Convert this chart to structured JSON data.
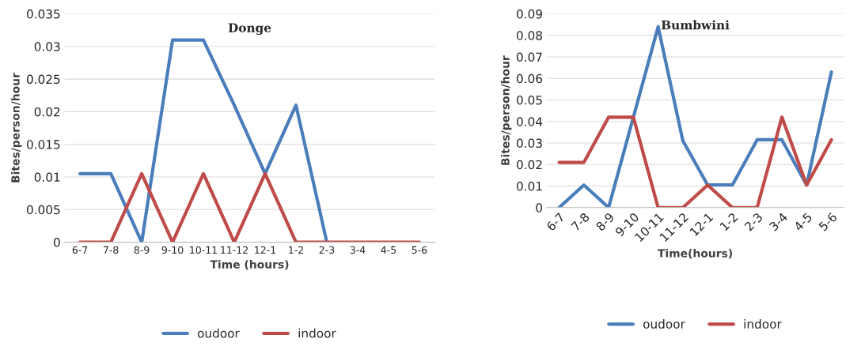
{
  "chart_data": [
    {
      "type": "line",
      "title": "Donge",
      "xlabel": "Time (hours)",
      "ylabel": "Bites/person/hour",
      "categories": [
        "6-7",
        "7-8",
        "8-9",
        "9-10",
        "10-11",
        "11-12",
        "12-1",
        "1-2",
        "2-3",
        "3-4",
        "4-5",
        "5-6"
      ],
      "series": [
        {
          "name": "oudoor",
          "color": "#4a7ebb",
          "values": [
            0.0105,
            0.0105,
            0,
            0.031,
            0.031,
            0.021,
            0.0105,
            0.021,
            0,
            null,
            null,
            null
          ]
        },
        {
          "name": "indoor",
          "color": "#be4b48",
          "values": [
            0,
            0,
            0.0105,
            0,
            0.0105,
            0,
            0.0105,
            0,
            0,
            0,
            0,
            0
          ]
        }
      ],
      "ylim": [
        0,
        0.035
      ],
      "yticks": [
        0,
        0.005,
        0.01,
        0.015,
        0.02,
        0.025,
        0.03,
        0.035
      ],
      "grid": "y",
      "legend": "bottom"
    },
    {
      "type": "line",
      "title": "Bumbwini",
      "xlabel": "Time(hours)",
      "ylabel": "Bites/person/hour",
      "categories": [
        "6-7",
        "7-8",
        "8-9",
        "9-10",
        "10-11",
        "11-12",
        "12-1",
        "1-2",
        "2-3",
        "3-4",
        "4-5",
        "5-6"
      ],
      "series": [
        {
          "name": "oudoor",
          "color": "#4a7ebb",
          "values": [
            0,
            0.0105,
            0,
            0.042,
            0.084,
            0.031,
            0.0105,
            0.0105,
            0.0315,
            0.0315,
            0.0105,
            0.063
          ]
        },
        {
          "name": "indoor",
          "color": "#be4b48",
          "values": [
            0.021,
            0.021,
            0.042,
            0.042,
            0,
            0,
            0.0105,
            0,
            0,
            0.042,
            0.0105,
            0.0315
          ]
        }
      ],
      "ylim": [
        0,
        0.09
      ],
      "yticks": [
        0,
        0.01,
        0.02,
        0.03,
        0.04,
        0.05,
        0.06,
        0.07,
        0.08,
        0.09
      ],
      "grid": "y",
      "legend": "bottom"
    }
  ]
}
